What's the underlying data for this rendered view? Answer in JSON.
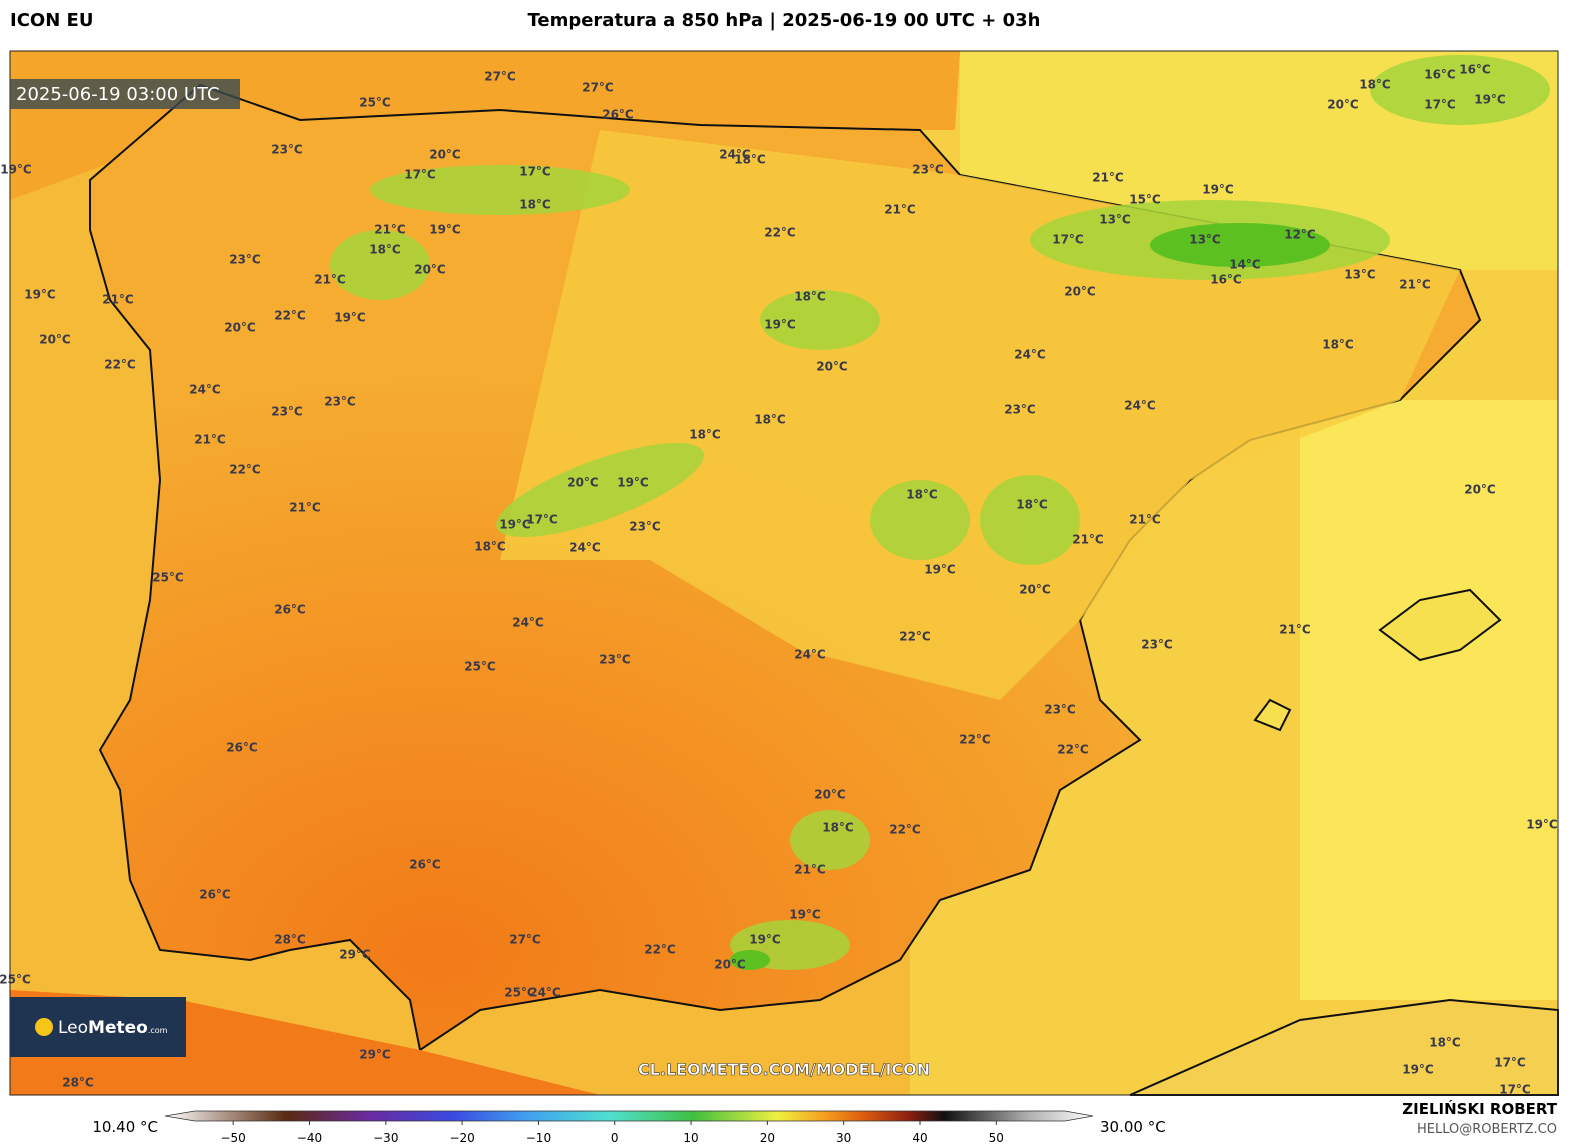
{
  "header": {
    "model": "ICON EU",
    "title": "Temperatura a 850 hPa | 2025-06-19 00 UTC + 03h"
  },
  "map": {
    "timestamp": "2025-06-19 03:00 UTC",
    "watermark": "CL.LEOMETEO.COM/MODEL/ICON",
    "logo": [
      "Leo",
      "Meteo",
      ".com"
    ],
    "contour_labels": [
      "27°C",
      "27°C",
      "25°C",
      "26°C",
      "23°C",
      "17°C",
      "17°C",
      "18°C",
      "24°C",
      "23°C",
      "21°C",
      "19°C",
      "20°C",
      "18°C",
      "16°C",
      "16°C",
      "17°C",
      "19°C",
      "13°C",
      "15°C",
      "17°C",
      "13°C",
      "12°C",
      "14°C",
      "16°C",
      "13°C",
      "20°C",
      "18°C",
      "21°C",
      "22°C",
      "18°C",
      "19°C",
      "20°C",
      "21°C",
      "19°C",
      "18°C",
      "20°C",
      "21°C",
      "23°C",
      "22°C",
      "19°C",
      "20°C",
      "24°C",
      "23°C",
      "24°C",
      "18°C",
      "18°C",
      "20°C",
      "19°C",
      "17°C",
      "19°C",
      "18°C",
      "23°C",
      "24°C",
      "18°C",
      "18°C",
      "21°C",
      "21°C",
      "19°C",
      "20°C",
      "22°C",
      "24°C",
      "23°C",
      "21°C",
      "20°C",
      "23°C",
      "22°C",
      "22°C",
      "19°C",
      "19°C",
      "19°C",
      "21°C",
      "20°C",
      "22°C",
      "23°C",
      "23°C",
      "24°C",
      "21°C",
      "22°C",
      "21°C",
      "24°C",
      "25°C",
      "23°C",
      "26°C",
      "25°C",
      "26°C",
      "20°C",
      "18°C",
      "21°C",
      "22°C",
      "26°C",
      "26°C",
      "27°C",
      "28°C",
      "29°C",
      "22°C",
      "19°C",
      "20°C",
      "19°C",
      "25°C",
      "24°C",
      "29°C",
      "28°C",
      "18°C",
      "17°C",
      "17°C",
      "19°C",
      "25°C",
      "20°C",
      "18°C",
      "21°C"
    ]
  },
  "colorbar": {
    "min_label": "10.40 °C",
    "max_label": "30.00 °C",
    "lim": [
      -55,
      59
    ],
    "ticks": [
      {
        "value": -50,
        "label": "−50"
      },
      {
        "value": -40,
        "label": "−40"
      },
      {
        "value": -30,
        "label": "−30"
      },
      {
        "value": -20,
        "label": "−20"
      },
      {
        "value": -10,
        "label": "−10"
      },
      0,
      10,
      20,
      30,
      40,
      50
    ]
  },
  "credit": {
    "author": "ZIELIŃSKI ROBERT",
    "email": "HELLO@ROBERTZ.CO"
  }
}
